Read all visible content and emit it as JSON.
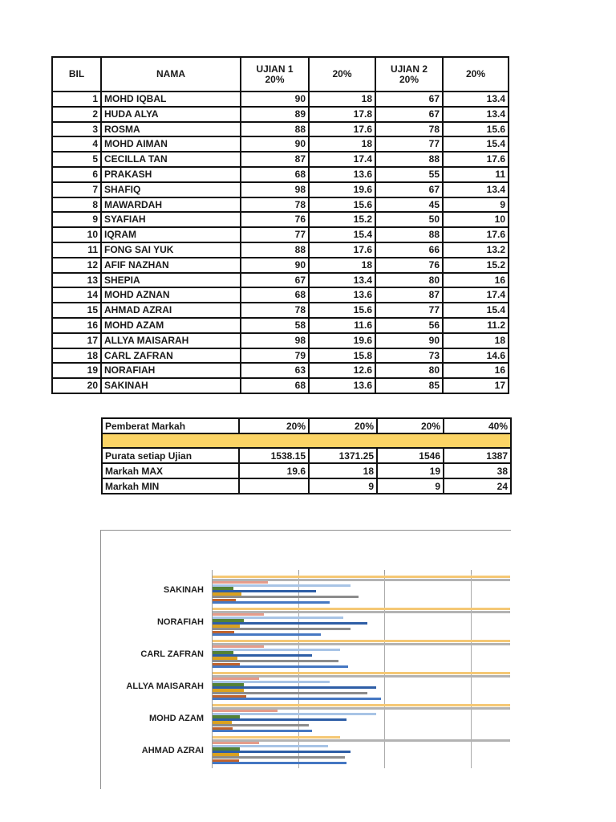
{
  "marks_table": {
    "headers": {
      "bil": "BIL",
      "nama": "NAMA",
      "ujian1_line1": "UJIAN 1",
      "ujian1_line2": "20%",
      "pct1": "20%",
      "ujian2_line1": "UJIAN 2",
      "ujian2_line2": "20%",
      "pct2": "20%"
    },
    "rows": [
      [
        "1",
        "MOHD IQBAL",
        "90",
        "18",
        "67",
        "13.4"
      ],
      [
        "2",
        "HUDA ALYA",
        "89",
        "17.8",
        "67",
        "13.4"
      ],
      [
        "3",
        "ROSMA",
        "88",
        "17.6",
        "78",
        "15.6"
      ],
      [
        "4",
        "MOHD AIMAN",
        "90",
        "18",
        "77",
        "15.4"
      ],
      [
        "5",
        "CECILLA TAN",
        "87",
        "17.4",
        "88",
        "17.6"
      ],
      [
        "6",
        "PRAKASH",
        "68",
        "13.6",
        "55",
        "11"
      ],
      [
        "7",
        "SHAFIQ",
        "98",
        "19.6",
        "67",
        "13.4"
      ],
      [
        "8",
        "MAWARDAH",
        "78",
        "15.6",
        "45",
        "9"
      ],
      [
        "9",
        "SYAFIAH",
        "76",
        "15.2",
        "50",
        "10"
      ],
      [
        "10",
        "IQRAM",
        "77",
        "15.4",
        "88",
        "17.6"
      ],
      [
        "11",
        "FONG SAI YUK",
        "88",
        "17.6",
        "66",
        "13.2"
      ],
      [
        "12",
        "AFIF NAZHAN",
        "90",
        "18",
        "76",
        "15.2"
      ],
      [
        "13",
        "SHEPIA",
        "67",
        "13.4",
        "80",
        "16"
      ],
      [
        "14",
        "MOHD AZNAN",
        "68",
        "13.6",
        "87",
        "17.4"
      ],
      [
        "15",
        "AHMAD AZRAI",
        "78",
        "15.6",
        "77",
        "15.4"
      ],
      [
        "16",
        "MOHD AZAM",
        "58",
        "11.6",
        "56",
        "11.2"
      ],
      [
        "17",
        "ALLYA MAISARAH",
        "98",
        "19.6",
        "90",
        "18"
      ],
      [
        "18",
        "CARL ZAFRAN",
        "79",
        "15.8",
        "73",
        "14.6"
      ],
      [
        "19",
        "NORAFIAH",
        "63",
        "12.6",
        "80",
        "16"
      ],
      [
        "20",
        "SAKINAH",
        "68",
        "13.6",
        "85",
        "17"
      ]
    ]
  },
  "summary_table": {
    "highlight_color": "#FBD465",
    "rows": [
      {
        "label": "Pemberat Markah",
        "values": [
          "20%",
          "20%",
          "20%",
          "40%"
        ],
        "highlight": false
      },
      {
        "label": "",
        "values": [
          "",
          "",
          "",
          ""
        ],
        "highlight": true
      },
      {
        "label": "Purata setiap Ujian",
        "values": [
          "1538.15",
          "1371.25",
          "1546",
          "1387"
        ],
        "highlight": false
      },
      {
        "label": "Markah MAX",
        "values": [
          "19.6",
          "18",
          "19",
          "38"
        ],
        "highlight": false
      },
      {
        "label": "Markah MIN",
        "values": [
          "",
          "9",
          "9",
          "24"
        ],
        "highlight": false
      }
    ]
  },
  "chart_data": {
    "type": "bar",
    "orientation": "horizontal",
    "title": "",
    "xlabel": "",
    "ylabel": "",
    "xlim": [
      0,
      173
    ],
    "gridlines": [
      50,
      100,
      150
    ],
    "grid": true,
    "legend": "not visible (chart clipped by page edge)",
    "note": "tan and light-gray series extend beyond the visible plot area and are clipped at the right edge; chart is also clipped at the page bottom after AHMAD AZRAI",
    "categories": [
      "SAKINAH",
      "NORAFIAH",
      "CARL ZAFRAN",
      "ALLYA MAISARAH",
      "MOHD AZAM",
      "AHMAD AZRAI"
    ],
    "series": [
      {
        "name": "tan",
        "color": "#F5C875",
        "values": [
          173,
          173,
          173,
          173,
          173,
          74
        ]
      },
      {
        "name": "light-gray",
        "color": "#B3B3B3",
        "values": [
          173,
          173,
          173,
          173,
          173,
          173
        ]
      },
      {
        "name": "salmon",
        "color": "#E59C8B",
        "values": [
          32,
          30,
          30,
          27,
          38,
          27
        ]
      },
      {
        "name": "light-blue",
        "color": "#A8C4E6",
        "values": [
          80,
          76,
          74,
          68,
          95,
          67
        ]
      },
      {
        "name": "green",
        "color": "#538135",
        "values": [
          12,
          18,
          12,
          18,
          16,
          16
        ]
      },
      {
        "name": "dark-blue",
        "color": "#2E5EA6",
        "values": [
          60,
          90,
          58,
          95,
          78,
          80
        ]
      },
      {
        "name": "gold",
        "color": "#D9A120",
        "values": [
          17,
          16,
          14.6,
          18,
          11.2,
          15.4
        ]
      },
      {
        "name": "gray",
        "color": "#8C8C8C",
        "values": [
          85,
          80,
          73,
          90,
          56,
          77
        ]
      },
      {
        "name": "orange",
        "color": "#C0622C",
        "values": [
          13.6,
          12.6,
          15.8,
          19.6,
          11.6,
          15.6
        ]
      },
      {
        "name": "blue",
        "color": "#4577C2",
        "values": [
          68,
          63,
          79,
          98,
          58,
          78
        ]
      }
    ]
  }
}
